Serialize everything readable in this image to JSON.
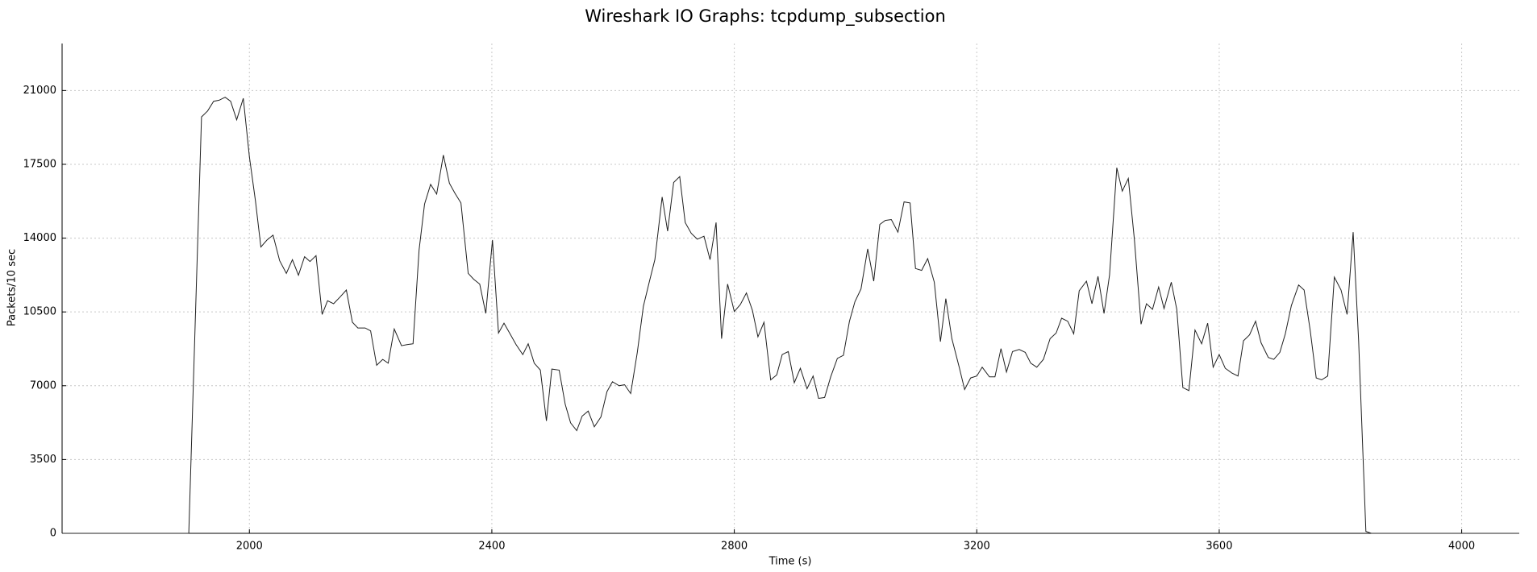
{
  "chart_data": {
    "type": "line",
    "title": "Wireshark IO Graphs: tcpdump_subsection",
    "xlabel": "Time (s)",
    "ylabel": "Packets/10 sec",
    "xlim": [
      1691,
      4095
    ],
    "ylim": [
      0,
      23230
    ],
    "xticks": [
      2000,
      2400,
      2800,
      3200,
      3600,
      4000
    ],
    "yticks": [
      0,
      3500,
      7000,
      10500,
      14000,
      17500,
      21000
    ],
    "grid": true,
    "color": "#202020",
    "x": [
      1691,
      1900,
      1921,
      1931,
      1941,
      1950,
      1960,
      1969,
      1979,
      1990,
      2000,
      2010,
      2019,
      2029,
      2039,
      2050,
      2061,
      2071,
      2081,
      2091,
      2100,
      2110,
      2120,
      2129,
      2139,
      2150,
      2160,
      2170,
      2179,
      2191,
      2200,
      2210,
      2220,
      2229,
      2239,
      2251,
      2260,
      2270,
      2280,
      2289,
      2299,
      2309,
      2320,
      2330,
      2339,
      2349,
      2361,
      2370,
      2380,
      2390,
      2401,
      2411,
      2420,
      2430,
      2440,
      2451,
      2460,
      2470,
      2480,
      2490,
      2499,
      2511,
      2521,
      2530,
      2540,
      2549,
      2559,
      2569,
      2580,
      2590,
      2599,
      2610,
      2619,
      2629,
      2640,
      2650,
      2660,
      2669,
      2681,
      2690,
      2700,
      2710,
      2719,
      2729,
      2739,
      2750,
      2760,
      2770,
      2779,
      2789,
      2800,
      2810,
      2820,
      2830,
      2839,
      2849,
      2860,
      2870,
      2879,
      2889,
      2899,
      2909,
      2920,
      2930,
      2939,
      2949,
      2959,
      2970,
      2980,
      2990,
      2999,
      3009,
      3020,
      3030,
      3040,
      3049,
      3059,
      3070,
      3080,
      3090,
      3099,
      3109,
      3119,
      3130,
      3140,
      3149,
      3159,
      3171,
      3180,
      3190,
      3200,
      3209,
      3221,
      3230,
      3240,
      3249,
      3259,
      3270,
      3280,
      3289,
      3299,
      3310,
      3321,
      3331,
      3340,
      3350,
      3360,
      3369,
      3381,
      3390,
      3400,
      3410,
      3419,
      3431,
      3440,
      3450,
      3460,
      3471,
      3480,
      3490,
      3500,
      3509,
      3521,
      3530,
      3540,
      3550,
      3560,
      3571,
      3581,
      3590,
      3600,
      3610,
      3621,
      3631,
      3640,
      3650,
      3660,
      3669,
      3681,
      3690,
      3700,
      3709,
      3719,
      3731,
      3740,
      3750,
      3760,
      3769,
      3779,
      3790,
      3801,
      3811,
      3821,
      3830,
      3842,
      3851,
      4095
    ],
    "values": [
      0,
      0,
      19750,
      20030,
      20490,
      20540,
      20680,
      20490,
      19610,
      20630,
      17850,
      15760,
      13580,
      13910,
      14140,
      12930,
      12330,
      12980,
      12240,
      13120,
      12890,
      13170,
      10380,
      11030,
      10890,
      11220,
      11540,
      10010,
      9740,
      9740,
      9600,
      7970,
      8250,
      8070,
      9690,
      8900,
      8950,
      8990,
      13440,
      15620,
      16550,
      16090,
      17940,
      16600,
      16130,
      15670,
      12330,
      12050,
      11820,
      10430,
      13910,
      9500,
      9970,
      9460,
      8950,
      8480,
      8990,
      8070,
      7740,
      5330,
      7790,
      7740,
      6120,
      5240,
      4870,
      5560,
      5800,
      5050,
      5520,
      6720,
      7190,
      7000,
      7050,
      6630,
      8580,
      10760,
      11960,
      12980,
      15950,
      14330,
      16640,
      16920,
      14740,
      14230,
      13950,
      14090,
      12980,
      14740,
      9230,
      11820,
      10520,
      10850,
      11400,
      10570,
      9320,
      10010,
      7280,
      7510,
      8480,
      8620,
      7140,
      7830,
      6860,
      7460,
      6400,
      6440,
      7420,
      8300,
      8440,
      10060,
      10990,
      11590,
      13490,
      11960,
      14650,
      14840,
      14880,
      14280,
      15720,
      15670,
      12560,
      12470,
      13030,
      11910,
      9090,
      11130,
      9230,
      7880,
      6820,
      7370,
      7460,
      7880,
      7420,
      7420,
      8760,
      7650,
      8620,
      8720,
      8580,
      8070,
      7880,
      8250,
      9230,
      9500,
      10200,
      10060,
      9460,
      11500,
      11960,
      10890,
      12190,
      10430,
      12240,
      17340,
      16230,
      16830,
      13950,
      9920,
      10890,
      10620,
      11680,
      10660,
      11910,
      10620,
      6910,
      6770,
      9640,
      8990,
      9970,
      7880,
      8480,
      7830,
      7600,
      7460,
      9130,
      9410,
      10060,
      9040,
      8340,
      8250,
      8580,
      9460,
      10800,
      11780,
      11540,
      9640,
      7370,
      7280,
      7460,
      12150,
      11540,
      10380,
      14280,
      9130,
      90,
      0,
      0
    ]
  }
}
